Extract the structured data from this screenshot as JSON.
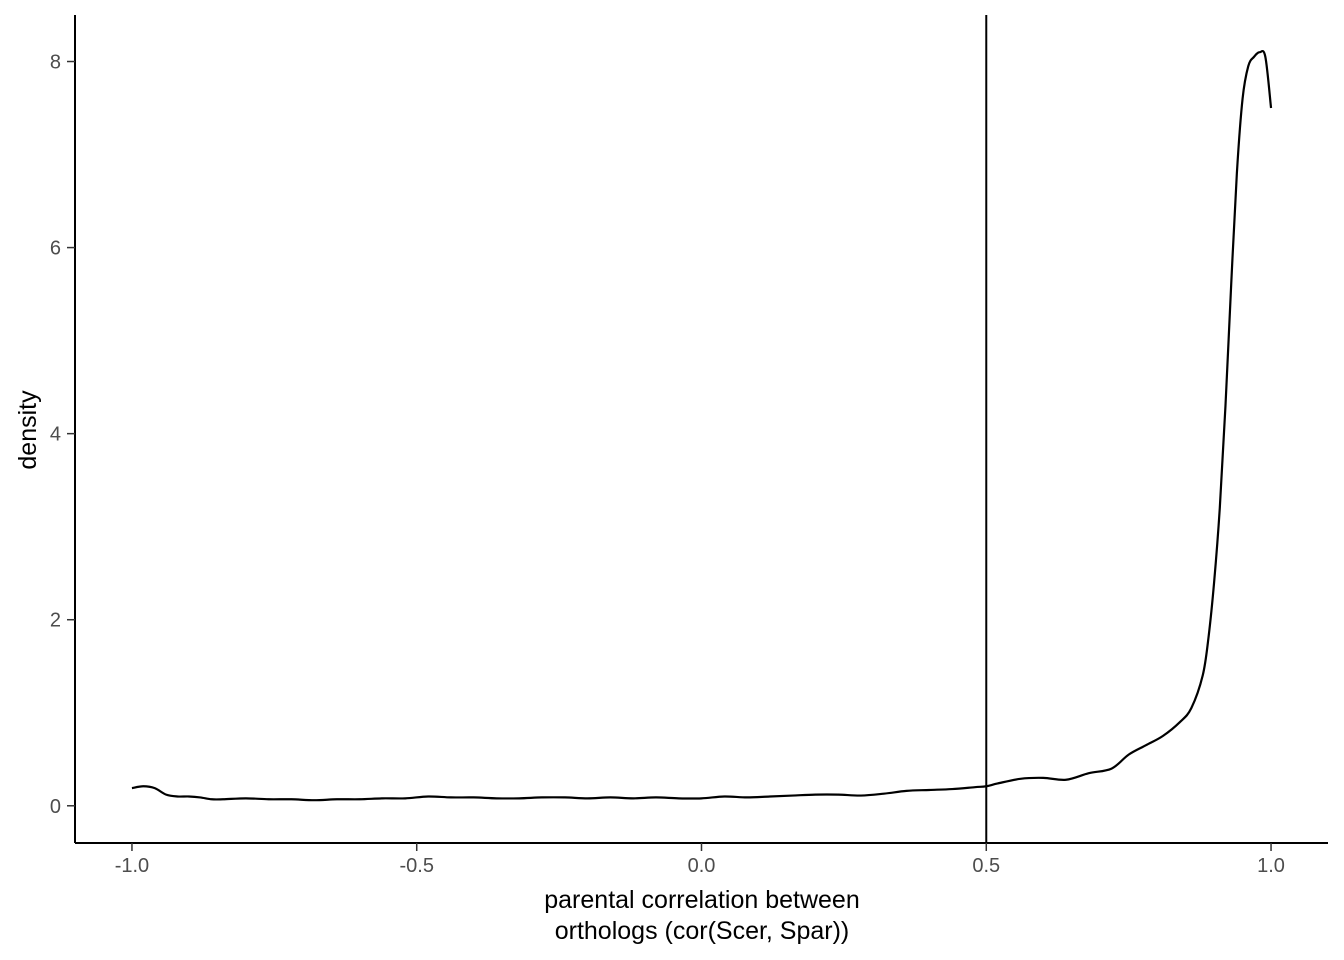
{
  "chart_data": {
    "type": "line",
    "title": "",
    "xlabel_lines": [
      "parental correlation between",
      "orthologs (cor(Scer, Spar))"
    ],
    "ylabel": "density",
    "xlim": [
      -1.1,
      1.1
    ],
    "ylim": [
      -0.4,
      8.5
    ],
    "x_ticks": [
      -1.0,
      -0.5,
      0.0,
      0.5,
      1.0
    ],
    "x_tick_labels": [
      "-1.0",
      "-0.5",
      "0.0",
      "0.5",
      "1.0"
    ],
    "y_ticks": [
      0,
      2,
      4,
      6,
      8
    ],
    "y_tick_labels": [
      "0",
      "2",
      "4",
      "6",
      "8"
    ],
    "grid": false,
    "vline_x": 0.5,
    "series": [
      {
        "x": [
          -1.0,
          -0.98,
          -0.96,
          -0.94,
          -0.92,
          -0.9,
          -0.88,
          -0.86,
          -0.84,
          -0.8,
          -0.76,
          -0.72,
          -0.68,
          -0.64,
          -0.6,
          -0.56,
          -0.52,
          -0.48,
          -0.44,
          -0.4,
          -0.36,
          -0.32,
          -0.28,
          -0.24,
          -0.2,
          -0.16,
          -0.12,
          -0.08,
          -0.04,
          0.0,
          0.04,
          0.08,
          0.12,
          0.16,
          0.2,
          0.24,
          0.28,
          0.32,
          0.36,
          0.4,
          0.44,
          0.48,
          0.5,
          0.52,
          0.56,
          0.6,
          0.64,
          0.68,
          0.72,
          0.75,
          0.78,
          0.81,
          0.84,
          0.86,
          0.88,
          0.89,
          0.9,
          0.91,
          0.92,
          0.93,
          0.94,
          0.95,
          0.96,
          0.97,
          0.98,
          0.99,
          1.0
        ],
        "y": [
          0.19,
          0.21,
          0.19,
          0.12,
          0.1,
          0.1,
          0.09,
          0.07,
          0.07,
          0.08,
          0.07,
          0.07,
          0.06,
          0.07,
          0.07,
          0.08,
          0.08,
          0.1,
          0.09,
          0.09,
          0.08,
          0.08,
          0.09,
          0.09,
          0.08,
          0.09,
          0.08,
          0.09,
          0.08,
          0.08,
          0.1,
          0.09,
          0.1,
          0.11,
          0.12,
          0.12,
          0.11,
          0.13,
          0.16,
          0.17,
          0.18,
          0.2,
          0.21,
          0.24,
          0.29,
          0.3,
          0.28,
          0.35,
          0.4,
          0.55,
          0.65,
          0.75,
          0.9,
          1.05,
          1.4,
          1.8,
          2.4,
          3.2,
          4.3,
          5.6,
          6.8,
          7.6,
          7.95,
          8.05,
          8.1,
          8.05,
          7.5
        ]
      }
    ]
  }
}
